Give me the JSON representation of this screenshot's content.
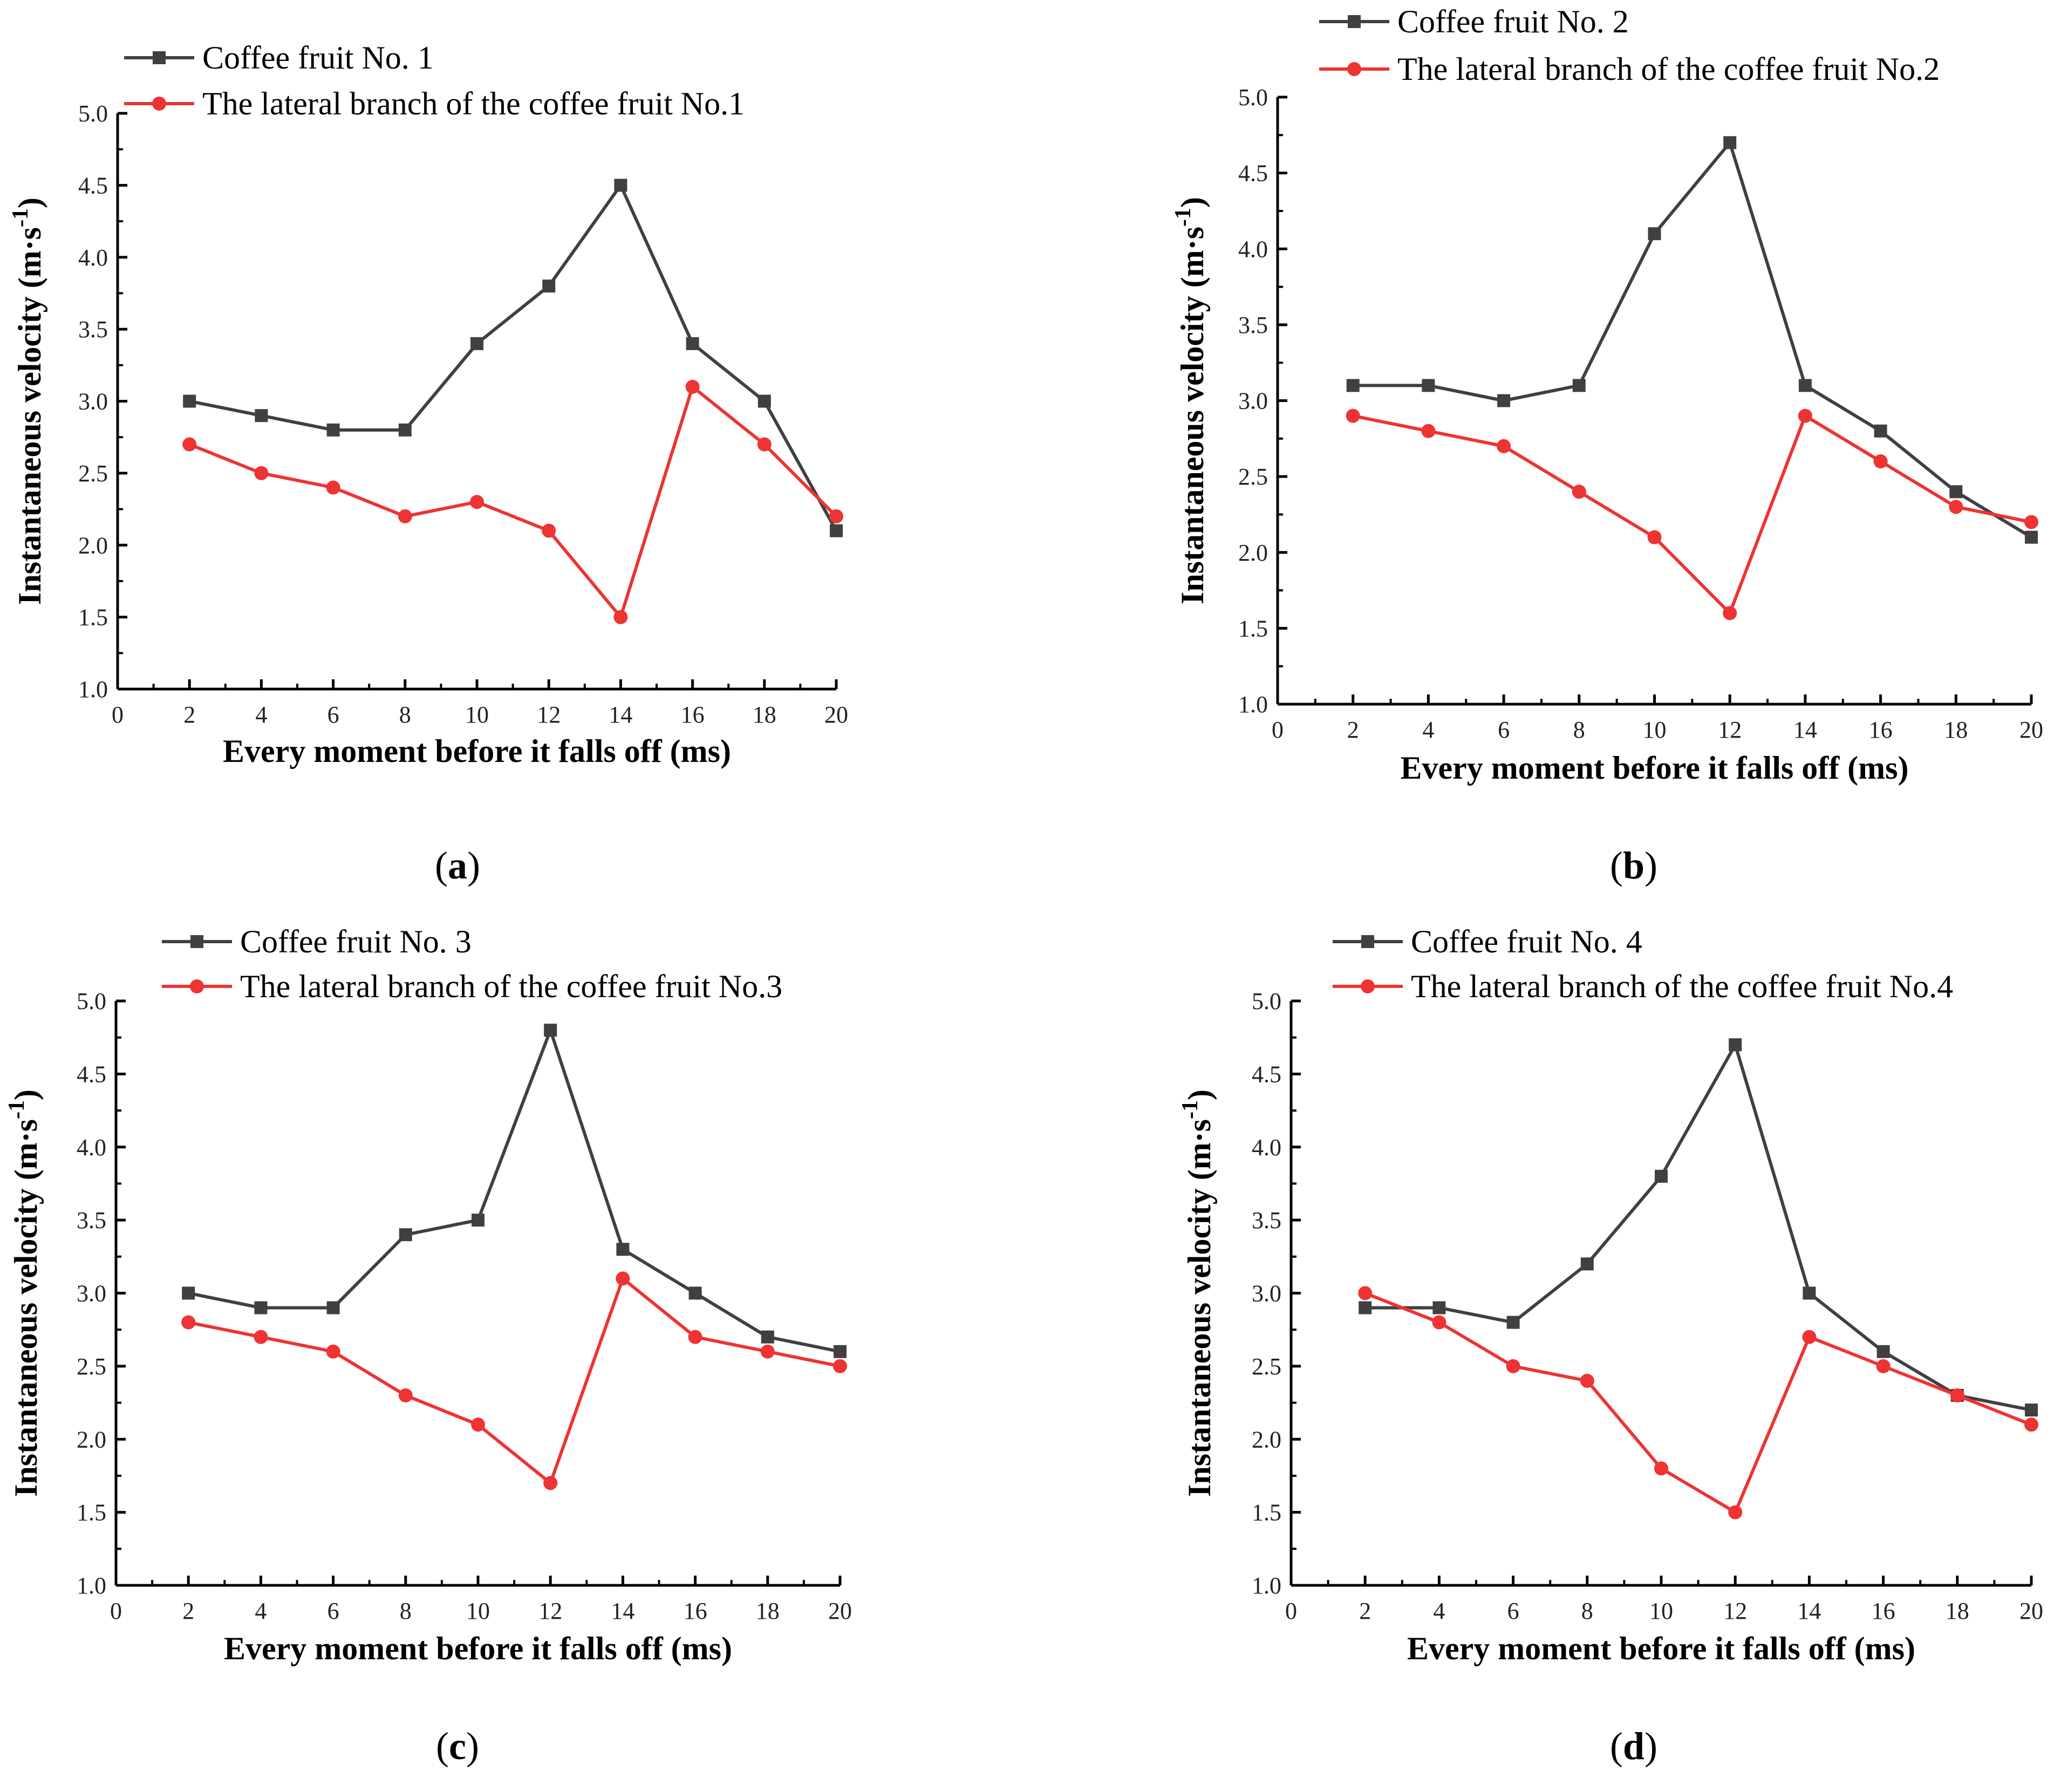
{
  "colors": {
    "series1": "#404040",
    "series2": "#ee3333",
    "axis": "#000000"
  },
  "chart_data": [
    {
      "type": "line",
      "panel": "a",
      "xlabel": "Every moment before it falls off (ms)",
      "ylabel_main": "Instantaneous velocity (m·s",
      "ylabel_sup": "-1",
      "ylabel_tail": ")",
      "xlim": [
        0,
        20
      ],
      "ylim": [
        1.0,
        5.0
      ],
      "xticks": [
        "0",
        "2",
        "4",
        "6",
        "8",
        "10",
        "12",
        "14",
        "16",
        "18",
        "20"
      ],
      "yticks": [
        "1.0",
        "1.5",
        "2.0",
        "2.5",
        "3.0",
        "3.5",
        "4.0",
        "4.5",
        "5.0"
      ],
      "x": [
        2,
        4,
        6,
        8,
        10,
        12,
        14,
        16,
        18,
        20
      ],
      "series": [
        {
          "name": "Coffee fruit No. 1",
          "marker": "square",
          "values": [
            3.0,
            2.9,
            2.8,
            2.8,
            3.4,
            3.8,
            4.5,
            3.4,
            3.0,
            2.1
          ]
        },
        {
          "name": "The lateral branch of the coffee fruit No.1",
          "marker": "circle",
          "values": [
            2.7,
            2.5,
            2.4,
            2.2,
            2.3,
            2.1,
            1.5,
            3.1,
            2.7,
            2.2
          ]
        }
      ]
    },
    {
      "type": "line",
      "panel": "b",
      "xlabel": "Every moment before it falls off (ms)",
      "ylabel_main": "Instantaneous velocity (m·s",
      "ylabel_sup": "-1",
      "ylabel_tail": ")",
      "xlim": [
        0,
        20
      ],
      "ylim": [
        1.0,
        5.0
      ],
      "xticks": [
        "0",
        "2",
        "4",
        "6",
        "8",
        "10",
        "12",
        "14",
        "16",
        "18",
        "20"
      ],
      "yticks": [
        "1.0",
        "1.5",
        "2.0",
        "2.5",
        "3.0",
        "3.5",
        "4.0",
        "4.5",
        "5.0"
      ],
      "x": [
        2,
        4,
        6,
        8,
        10,
        12,
        14,
        16,
        18,
        20
      ],
      "series": [
        {
          "name": "Coffee fruit No. 2",
          "marker": "square",
          "values": [
            3.1,
            3.1,
            3.0,
            3.1,
            4.1,
            4.7,
            3.1,
            2.8,
            2.4,
            2.1
          ]
        },
        {
          "name": "The lateral branch of the coffee fruit No.2",
          "marker": "circle",
          "values": [
            2.9,
            2.8,
            2.7,
            2.4,
            2.1,
            1.6,
            2.9,
            2.6,
            2.3,
            2.2
          ]
        }
      ]
    },
    {
      "type": "line",
      "panel": "c",
      "xlabel": "Every moment before it falls off (ms)",
      "ylabel_main": "Instantaneous velocity (m·s",
      "ylabel_sup": "-1",
      "ylabel_tail": ")",
      "xlim": [
        0,
        20
      ],
      "ylim": [
        1.0,
        5.0
      ],
      "xticks": [
        "0",
        "2",
        "4",
        "6",
        "8",
        "10",
        "12",
        "14",
        "16",
        "18",
        "20"
      ],
      "yticks": [
        "1.0",
        "1.5",
        "2.0",
        "2.5",
        "3.0",
        "3.5",
        "4.0",
        "4.5",
        "5.0"
      ],
      "x": [
        2,
        4,
        6,
        8,
        10,
        12,
        14,
        16,
        18,
        20
      ],
      "series": [
        {
          "name": "Coffee fruit No. 3",
          "marker": "square",
          "values": [
            3.0,
            2.9,
            2.9,
            3.4,
            3.5,
            4.8,
            3.3,
            3.0,
            2.7,
            2.6
          ]
        },
        {
          "name": "The lateral branch of the coffee fruit No.3",
          "marker": "circle",
          "values": [
            2.8,
            2.7,
            2.6,
            2.3,
            2.1,
            1.7,
            3.1,
            2.7,
            2.6,
            2.5
          ]
        }
      ]
    },
    {
      "type": "line",
      "panel": "d",
      "xlabel": "Every moment before it falls off (ms)",
      "ylabel_main": "Instantaneous velocity (m·s",
      "ylabel_sup": "-1",
      "ylabel_tail": ")",
      "xlim": [
        0,
        20
      ],
      "ylim": [
        1.0,
        5.0
      ],
      "xticks": [
        "0",
        "2",
        "4",
        "6",
        "8",
        "10",
        "12",
        "14",
        "16",
        "18",
        "20"
      ],
      "yticks": [
        "1.0",
        "1.5",
        "2.0",
        "2.5",
        "3.0",
        "3.5",
        "4.0",
        "4.5",
        "5.0"
      ],
      "x": [
        2,
        4,
        6,
        8,
        10,
        12,
        14,
        16,
        18,
        20
      ],
      "series": [
        {
          "name": "Coffee fruit No. 4",
          "marker": "square",
          "values": [
            2.9,
            2.9,
            2.8,
            3.2,
            3.8,
            4.7,
            3.0,
            2.6,
            2.3,
            2.2
          ]
        },
        {
          "name": "The lateral branch of the coffee fruit No.4",
          "marker": "circle",
          "values": [
            3.0,
            2.8,
            2.5,
            2.4,
            1.8,
            1.5,
            2.7,
            2.5,
            2.3,
            2.1
          ]
        }
      ]
    }
  ],
  "panel_labels": [
    "(a)",
    "(b)",
    "(c)",
    "(d)"
  ]
}
